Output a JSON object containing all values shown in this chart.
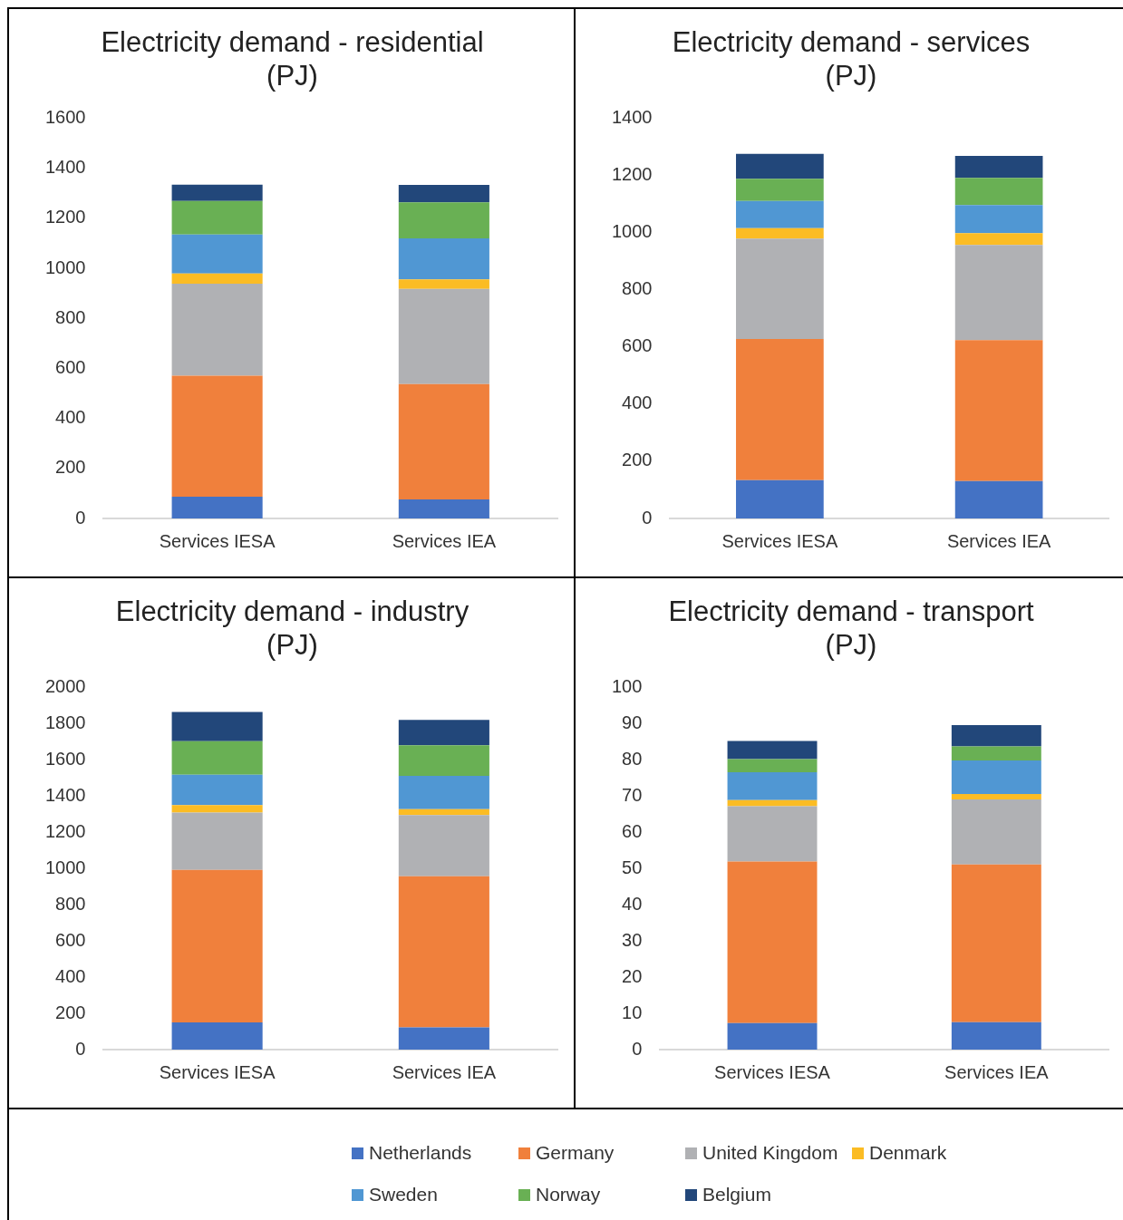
{
  "chart_data": [
    {
      "type": "bar",
      "title": "Electricity demand - residential (PJ)",
      "categories": [
        "Services IESA",
        "Services IEA"
      ],
      "stacked": true,
      "ylim": [
        0,
        1600
      ],
      "yticks": [
        0,
        200,
        400,
        600,
        800,
        1000,
        1200,
        1400,
        1600
      ],
      "legend": "bottom",
      "series": [
        {
          "name": "Netherlands",
          "color": "#4472c4",
          "values": [
            87,
            76
          ]
        },
        {
          "name": "Germany",
          "color": "#f0803c",
          "values": [
            484,
            461
          ]
        },
        {
          "name": "United Kingdom",
          "color": "#b0b1b4",
          "values": [
            367,
            381
          ]
        },
        {
          "name": "Denmark",
          "color": "#fbbc24",
          "values": [
            41,
            38
          ]
        },
        {
          "name": "Sweden",
          "color": "#5097d3",
          "values": [
            156,
            164
          ]
        },
        {
          "name": "Norway",
          "color": "#69b054",
          "values": [
            134,
            144
          ]
        },
        {
          "name": "Belgium",
          "color": "#22477a",
          "values": [
            65,
            69
          ]
        }
      ]
    },
    {
      "type": "bar",
      "title": "Electricity demand - services (PJ)",
      "categories": [
        "Services IESA",
        "Services IEA"
      ],
      "stacked": true,
      "ylim": [
        0,
        1400
      ],
      "yticks": [
        0,
        200,
        400,
        600,
        800,
        1000,
        1200,
        1400
      ],
      "legend": "bottom",
      "series": [
        {
          "name": "Netherlands",
          "color": "#4472c4",
          "values": [
            134,
            131
          ]
        },
        {
          "name": "Germany",
          "color": "#f0803c",
          "values": [
            494,
            493
          ]
        },
        {
          "name": "United Kingdom",
          "color": "#b0b1b4",
          "values": [
            351,
            333
          ]
        },
        {
          "name": "Denmark",
          "color": "#fbbc24",
          "values": [
            36,
            41
          ]
        },
        {
          "name": "Sweden",
          "color": "#5097d3",
          "values": [
            95,
            98
          ]
        },
        {
          "name": "Norway",
          "color": "#69b054",
          "values": [
            78,
            95
          ]
        },
        {
          "name": "Belgium",
          "color": "#22477a",
          "values": [
            87,
            77
          ]
        }
      ]
    },
    {
      "type": "bar",
      "title": "Electricity demand - industry (PJ)",
      "categories": [
        "Services IESA",
        "Services IEA"
      ],
      "stacked": true,
      "ylim": [
        0,
        2000
      ],
      "yticks": [
        0,
        200,
        400,
        600,
        800,
        1000,
        1200,
        1400,
        1600,
        1800,
        2000
      ],
      "legend": "bottom",
      "series": [
        {
          "name": "Netherlands",
          "color": "#4472c4",
          "values": [
            150,
            122
          ]
        },
        {
          "name": "Germany",
          "color": "#f0803c",
          "values": [
            842,
            835
          ]
        },
        {
          "name": "United Kingdom",
          "color": "#b0b1b4",
          "values": [
            317,
            338
          ]
        },
        {
          "name": "Denmark",
          "color": "#fbbc24",
          "values": [
            41,
            32
          ]
        },
        {
          "name": "Sweden",
          "color": "#5097d3",
          "values": [
            168,
            185
          ]
        },
        {
          "name": "Norway",
          "color": "#69b054",
          "values": [
            185,
            169
          ]
        },
        {
          "name": "Belgium",
          "color": "#22477a",
          "values": [
            161,
            140
          ]
        }
      ]
    },
    {
      "type": "bar",
      "title": "Electricity demand - transport (PJ)",
      "categories": [
        "Services IESA",
        "Services IEA"
      ],
      "stacked": true,
      "ylim": [
        0,
        100
      ],
      "yticks": [
        0,
        10,
        20,
        30,
        40,
        50,
        60,
        70,
        80,
        90,
        100
      ],
      "legend": "bottom",
      "series": [
        {
          "name": "Netherlands",
          "color": "#4472c4",
          "values": [
            7.3,
            7.6
          ]
        },
        {
          "name": "Germany",
          "color": "#f0803c",
          "values": [
            44.6,
            43.5
          ]
        },
        {
          "name": "United Kingdom",
          "color": "#b0b1b4",
          "values": [
            15.3,
            18.0
          ]
        },
        {
          "name": "Denmark",
          "color": "#fbbc24",
          "values": [
            1.7,
            1.5
          ]
        },
        {
          "name": "Sweden",
          "color": "#5097d3",
          "values": [
            7.7,
            9.2
          ]
        },
        {
          "name": "Norway",
          "color": "#69b054",
          "values": [
            3.6,
            3.9
          ]
        },
        {
          "name": "Belgium",
          "color": "#22477a",
          "values": [
            5.0,
            5.9
          ]
        }
      ]
    }
  ]
}
